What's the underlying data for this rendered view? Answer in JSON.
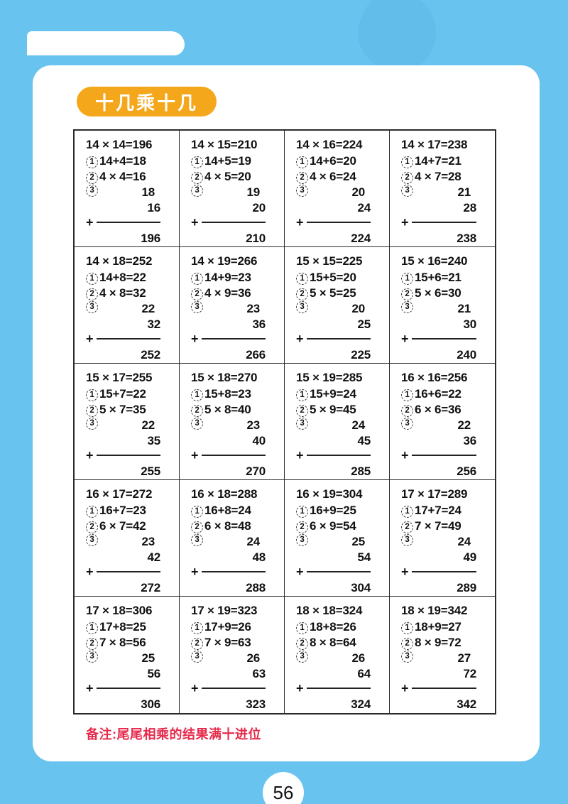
{
  "colors": {
    "background": "#69C3EF",
    "card": "#FFFFFF",
    "badge": "#F5A71B",
    "note_text": "#E62B4C",
    "table_border": "#2B2B2B",
    "text": "#111111"
  },
  "header": {
    "badge_title": "十几乘十几"
  },
  "step_markers": [
    "1",
    "2",
    "3"
  ],
  "cells": [
    {
      "equation": "14 × 14=196",
      "step1": "14+4=18",
      "step2": "4 × 4=16",
      "addend1": "18",
      "addend2": "16",
      "result": "196"
    },
    {
      "equation": "14 × 15=210",
      "step1": "14+5=19",
      "step2": "4 × 5=20",
      "addend1": "19",
      "addend2": "20",
      "result": "210"
    },
    {
      "equation": "14 × 16=224",
      "step1": "14+6=20",
      "step2": "4 × 6=24",
      "addend1": "20",
      "addend2": "24",
      "result": "224"
    },
    {
      "equation": "14 × 17=238",
      "step1": "14+7=21",
      "step2": "4 × 7=28",
      "addend1": "21",
      "addend2": "28",
      "result": "238"
    },
    {
      "equation": "14 × 18=252",
      "step1": "14+8=22",
      "step2": "4 × 8=32",
      "addend1": "22",
      "addend2": "32",
      "result": "252"
    },
    {
      "equation": "14 × 19=266",
      "step1": "14+9=23",
      "step2": "4 × 9=36",
      "addend1": "23",
      "addend2": "36",
      "result": "266"
    },
    {
      "equation": "15 × 15=225",
      "step1": "15+5=20",
      "step2": "5 × 5=25",
      "addend1": "20",
      "addend2": "25",
      "result": "225"
    },
    {
      "equation": "15 × 16=240",
      "step1": "15+6=21",
      "step2": "5 × 6=30",
      "addend1": "21",
      "addend2": "30",
      "result": "240"
    },
    {
      "equation": "15 × 17=255",
      "step1": "15+7=22",
      "step2": "5 × 7=35",
      "addend1": "22",
      "addend2": "35",
      "result": "255"
    },
    {
      "equation": "15 × 18=270",
      "step1": "15+8=23",
      "step2": "5 × 8=40",
      "addend1": "23",
      "addend2": "40",
      "result": "270"
    },
    {
      "equation": "15 × 19=285",
      "step1": "15+9=24",
      "step2": "5 × 9=45",
      "addend1": "24",
      "addend2": "45",
      "result": "285"
    },
    {
      "equation": "16 × 16=256",
      "step1": "16+6=22",
      "step2": "6 × 6=36",
      "addend1": "22",
      "addend2": "36",
      "result": "256"
    },
    {
      "equation": "16 × 17=272",
      "step1": "16+7=23",
      "step2": "6 × 7=42",
      "addend1": "23",
      "addend2": "42",
      "result": "272"
    },
    {
      "equation": "16 × 18=288",
      "step1": "16+8=24",
      "step2": "6 × 8=48",
      "addend1": "24",
      "addend2": "48",
      "result": "288"
    },
    {
      "equation": "16 × 19=304",
      "step1": "16+9=25",
      "step2": "6 × 9=54",
      "addend1": "25",
      "addend2": "54",
      "result": "304"
    },
    {
      "equation": "17 × 17=289",
      "step1": "17+7=24",
      "step2": "7 × 7=49",
      "addend1": "24",
      "addend2": "49",
      "result": "289"
    },
    {
      "equation": "17 × 18=306",
      "step1": "17+8=25",
      "step2": "7 × 8=56",
      "addend1": "25",
      "addend2": "56",
      "result": "306"
    },
    {
      "equation": "17 × 19=323",
      "step1": "17+9=26",
      "step2": "7 × 9=63",
      "addend1": "26",
      "addend2": "63",
      "result": "323"
    },
    {
      "equation": "18 × 18=324",
      "step1": "18+8=26",
      "step2": "8 × 8=64",
      "addend1": "26",
      "addend2": "64",
      "result": "324"
    },
    {
      "equation": "18 × 19=342",
      "step1": "18+9=27",
      "step2": "8 × 9=72",
      "addend1": "27",
      "addend2": "72",
      "result": "342"
    }
  ],
  "footer": {
    "note": "备注:尾尾相乘的结果满十进位",
    "page_number": "56"
  }
}
